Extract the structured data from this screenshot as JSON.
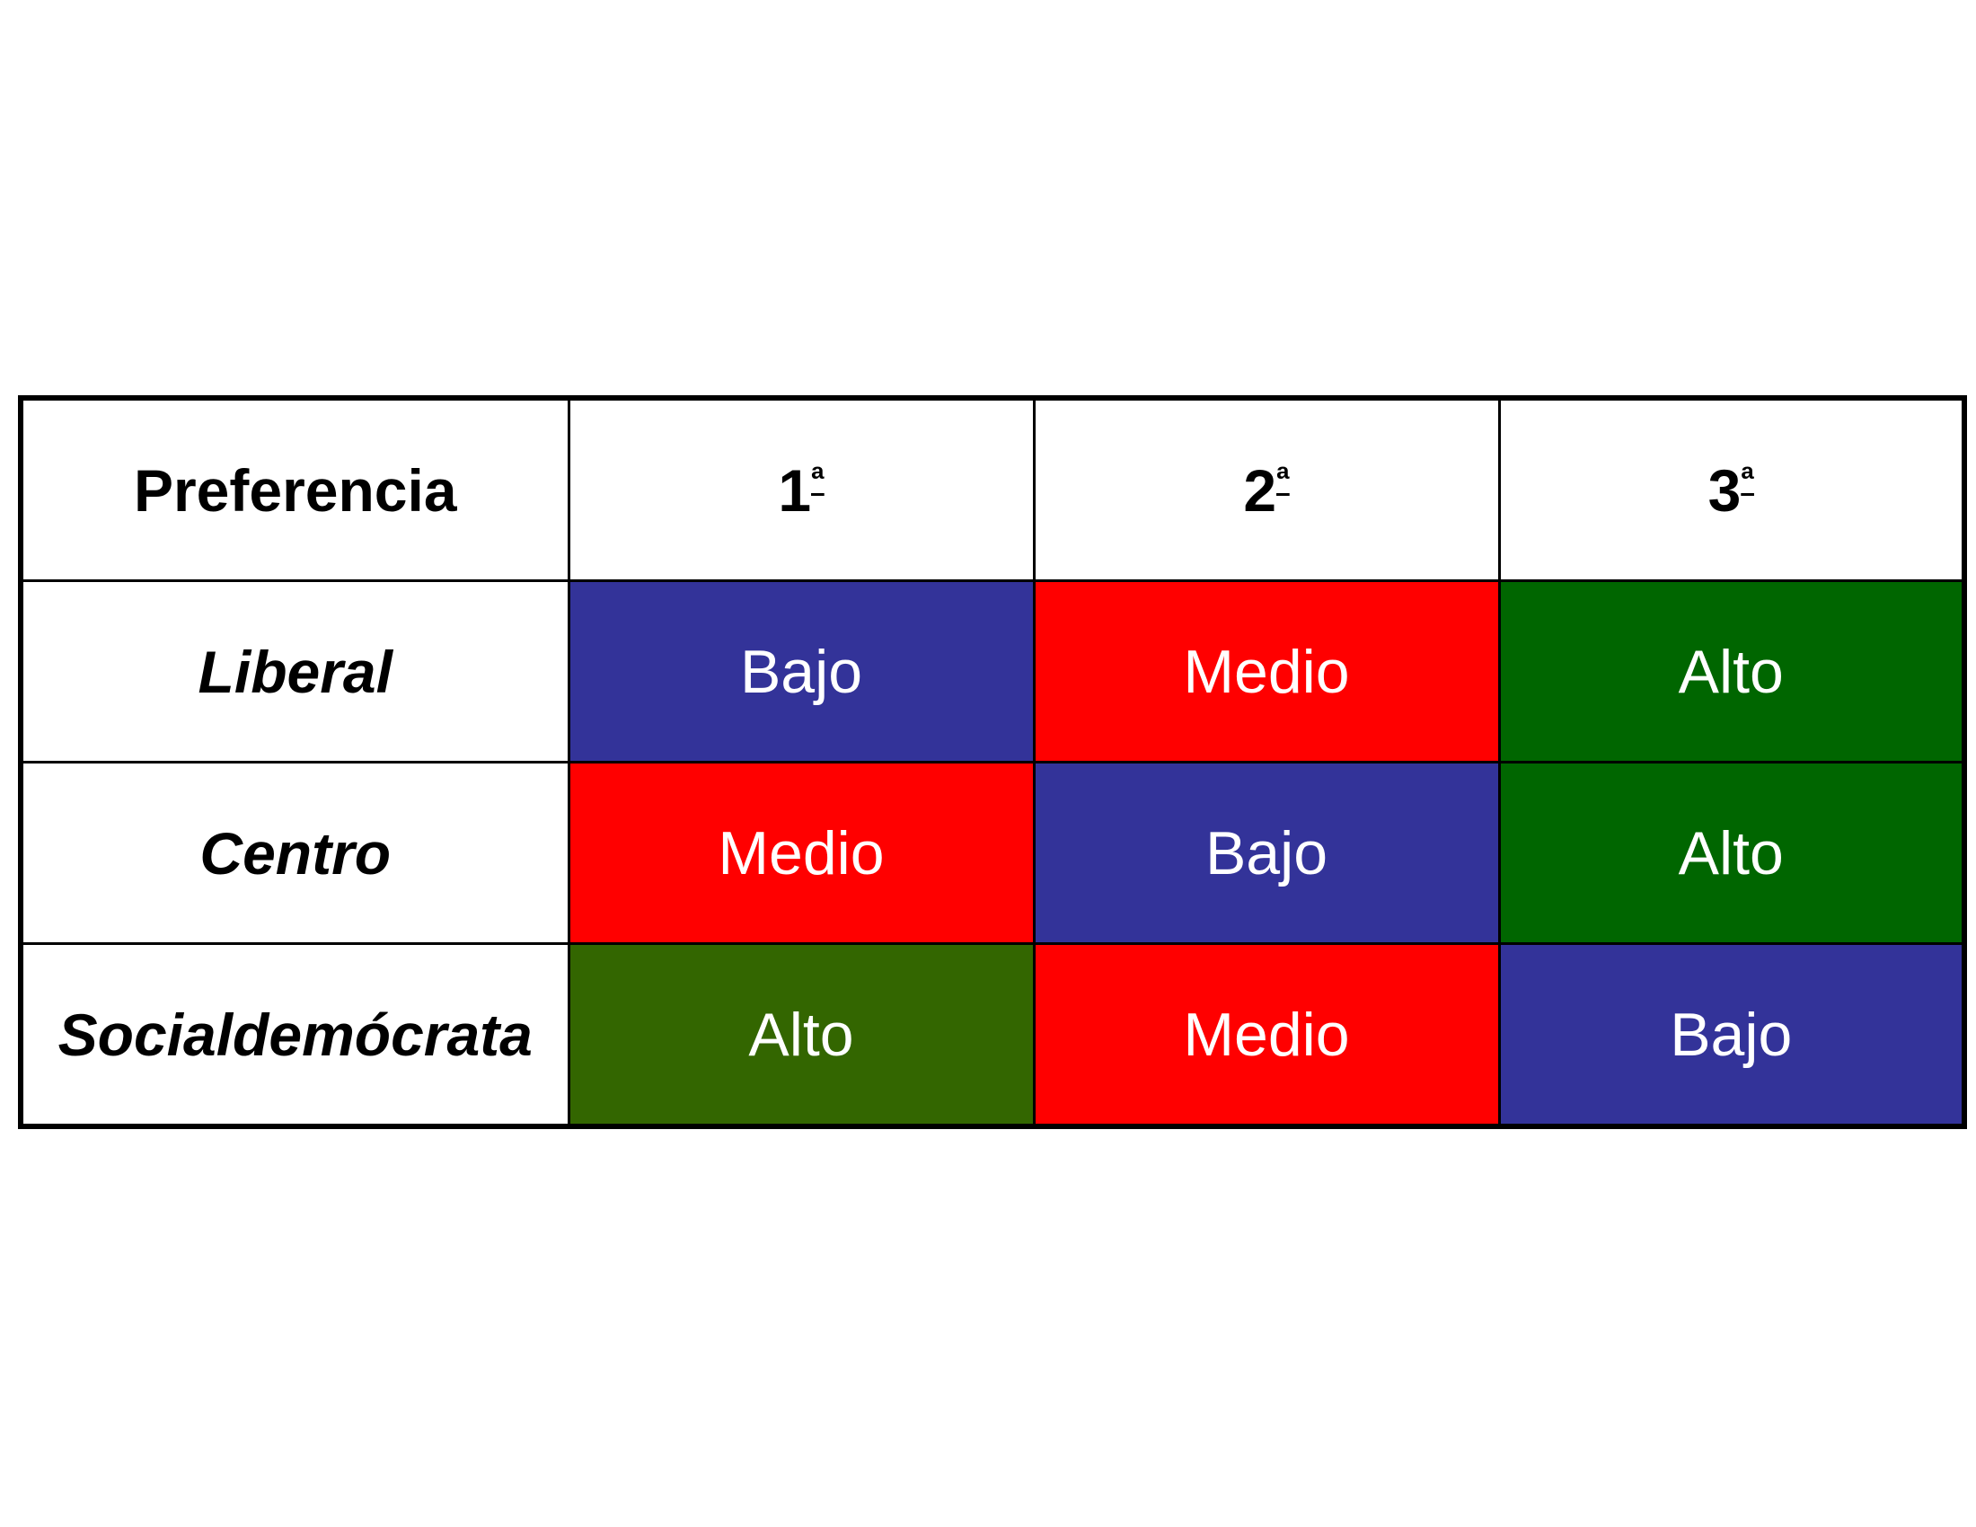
{
  "table": {
    "header": {
      "label": "Preferencia",
      "columns": [
        {
          "num": "1",
          "ord": "ª"
        },
        {
          "num": "2",
          "ord": "ª"
        },
        {
          "num": "3",
          "ord": "ª"
        }
      ]
    },
    "rows": [
      {
        "label": "Liberal",
        "cells": [
          "Bajo",
          "Medio",
          "Alto"
        ]
      },
      {
        "label": "Centro",
        "cells": [
          "Medio",
          "Bajo",
          "Alto"
        ]
      },
      {
        "label": "Socialdemócrata",
        "cells": [
          "Alto",
          "Medio",
          "Bajo"
        ]
      }
    ]
  },
  "colors": {
    "Bajo": "#333399",
    "Medio": "#ff0000",
    "Alto": "#006600",
    "Alto_row3": "#336600"
  }
}
